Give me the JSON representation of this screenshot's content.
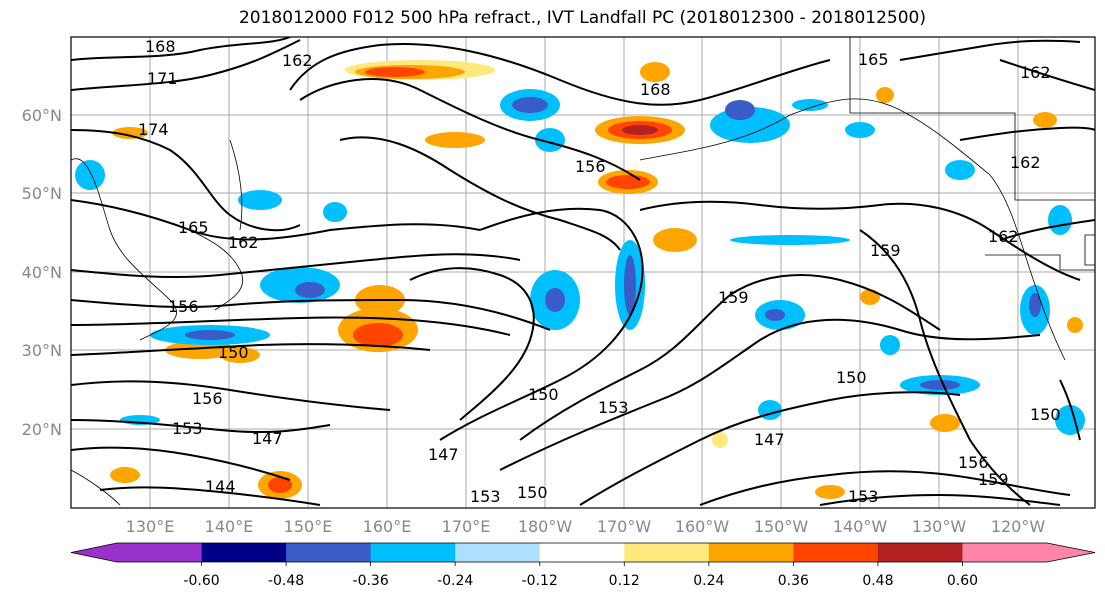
{
  "title": "2018012000 F012 500 hPa refract., IVT Landfall PC (2018012300 - 2018012500)",
  "lat_labels": [
    "60°N",
    "50°N",
    "40°N",
    "30°N",
    "20°N"
  ],
  "lon_labels": [
    "130°E",
    "140°E",
    "150°E",
    "160°E",
    "170°E",
    "180°W",
    "170°W",
    "160°W",
    "150°W",
    "140°W",
    "130°W",
    "120°W"
  ],
  "colorbar": {
    "colors": [
      "#9932CC",
      "#00008B",
      "#3A5CC8",
      "#00BFFF",
      "#ADDFFF",
      "#FFFFFF",
      "#FFE87C",
      "#FFA500",
      "#FF4500",
      "#B22222",
      "#FF85A8"
    ],
    "tick_labels": [
      "-0.60",
      "-0.48",
      "-0.36",
      "-0.24",
      "-0.12",
      "0.12",
      "0.24",
      "0.36",
      "0.48",
      "0.60"
    ]
  },
  "contour_labels": [
    "168",
    "171",
    "174",
    "165",
    "162",
    "156",
    "150",
    "156",
    "153",
    "147",
    "144",
    "153",
    "150",
    "153",
    "159",
    "150",
    "150",
    "147",
    "159",
    "150",
    "147",
    "153",
    "156",
    "159",
    "162",
    "162",
    "162",
    "165",
    "168",
    "156",
    "162"
  ]
}
